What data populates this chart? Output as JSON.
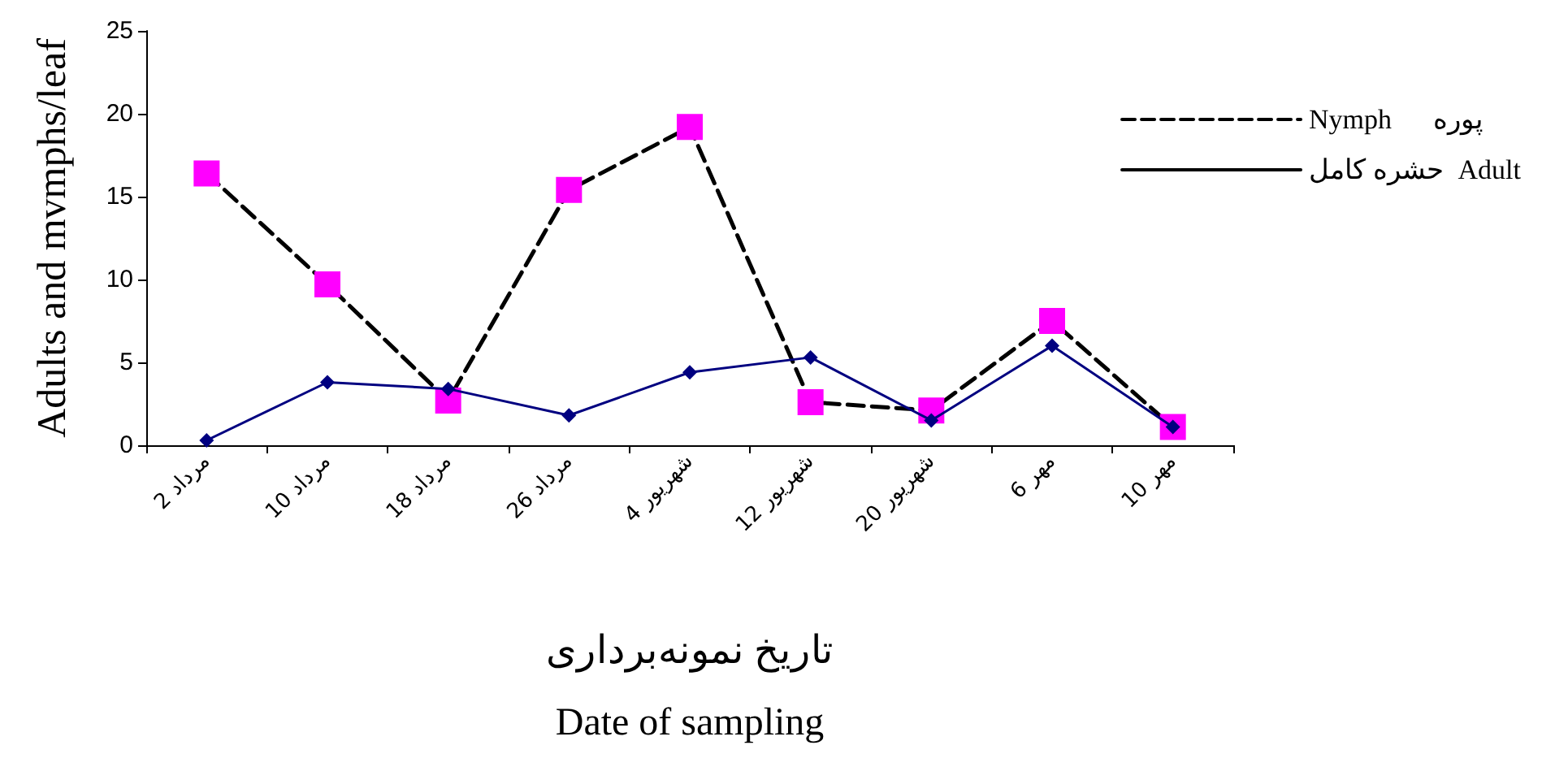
{
  "chart_data": {
    "type": "line",
    "xlabel": "تاریخ نمونه‌برداری\nDate of sampling",
    "ylabel": "Adults and mvmphs/leaf",
    "categories": [
      "2 مرداد",
      "10 مرداد",
      "18 مرداد",
      "26 مرداد",
      "4 شهریور",
      "12 شهریور",
      "20 شهریور",
      "6 مهر",
      "10 مهر"
    ],
    "series": [
      {
        "name": "Nymph      پوره",
        "color": "#ff00ff",
        "marker": "square",
        "line_style": "dashed",
        "values": [
          16.4,
          9.7,
          2.7,
          15.4,
          19.2,
          2.6,
          2.1,
          7.5,
          1.1
        ]
      },
      {
        "name": "حشره کامل  Adult",
        "color": "#000080",
        "marker": "diamond",
        "line_style": "solid",
        "values": [
          0.3,
          3.8,
          3.4,
          1.8,
          4.4,
          5.3,
          1.5,
          6.0,
          1.1
        ]
      }
    ],
    "ylim": [
      0,
      25
    ],
    "yticks": [
      0,
      5,
      10,
      15,
      20,
      25
    ],
    "grid": false,
    "legend": "right"
  }
}
